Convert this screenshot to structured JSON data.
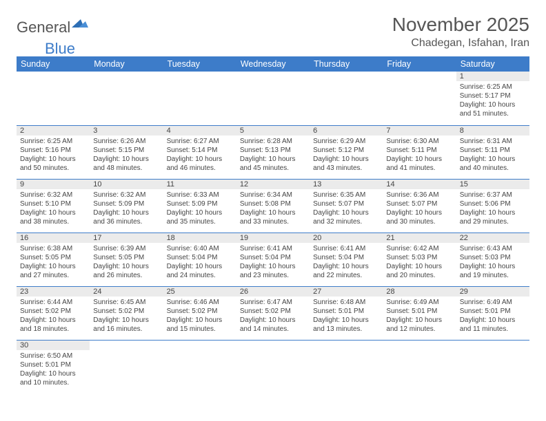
{
  "logo": {
    "text1": "General",
    "text2": "Blue"
  },
  "title": "November 2025",
  "location": "Chadegan, Isfahan, Iran",
  "colors": {
    "header_bg": "#3d7cc9",
    "header_fg": "#ffffff",
    "daynum_bg": "#ebebeb",
    "row_border": "#3d7cc9",
    "page_bg": "#ffffff",
    "text": "#444444",
    "title_text": "#555555"
  },
  "weekdays": [
    "Sunday",
    "Monday",
    "Tuesday",
    "Wednesday",
    "Thursday",
    "Friday",
    "Saturday"
  ],
  "first_day_col": 6,
  "days": [
    {
      "n": 1,
      "sunrise": "6:25 AM",
      "sunset": "5:17 PM",
      "dl_h": 10,
      "dl_m": 51
    },
    {
      "n": 2,
      "sunrise": "6:25 AM",
      "sunset": "5:16 PM",
      "dl_h": 10,
      "dl_m": 50
    },
    {
      "n": 3,
      "sunrise": "6:26 AM",
      "sunset": "5:15 PM",
      "dl_h": 10,
      "dl_m": 48
    },
    {
      "n": 4,
      "sunrise": "6:27 AM",
      "sunset": "5:14 PM",
      "dl_h": 10,
      "dl_m": 46
    },
    {
      "n": 5,
      "sunrise": "6:28 AM",
      "sunset": "5:13 PM",
      "dl_h": 10,
      "dl_m": 45
    },
    {
      "n": 6,
      "sunrise": "6:29 AM",
      "sunset": "5:12 PM",
      "dl_h": 10,
      "dl_m": 43
    },
    {
      "n": 7,
      "sunrise": "6:30 AM",
      "sunset": "5:11 PM",
      "dl_h": 10,
      "dl_m": 41
    },
    {
      "n": 8,
      "sunrise": "6:31 AM",
      "sunset": "5:11 PM",
      "dl_h": 10,
      "dl_m": 40
    },
    {
      "n": 9,
      "sunrise": "6:32 AM",
      "sunset": "5:10 PM",
      "dl_h": 10,
      "dl_m": 38
    },
    {
      "n": 10,
      "sunrise": "6:32 AM",
      "sunset": "5:09 PM",
      "dl_h": 10,
      "dl_m": 36
    },
    {
      "n": 11,
      "sunrise": "6:33 AM",
      "sunset": "5:09 PM",
      "dl_h": 10,
      "dl_m": 35
    },
    {
      "n": 12,
      "sunrise": "6:34 AM",
      "sunset": "5:08 PM",
      "dl_h": 10,
      "dl_m": 33
    },
    {
      "n": 13,
      "sunrise": "6:35 AM",
      "sunset": "5:07 PM",
      "dl_h": 10,
      "dl_m": 32
    },
    {
      "n": 14,
      "sunrise": "6:36 AM",
      "sunset": "5:07 PM",
      "dl_h": 10,
      "dl_m": 30
    },
    {
      "n": 15,
      "sunrise": "6:37 AM",
      "sunset": "5:06 PM",
      "dl_h": 10,
      "dl_m": 29
    },
    {
      "n": 16,
      "sunrise": "6:38 AM",
      "sunset": "5:05 PM",
      "dl_h": 10,
      "dl_m": 27
    },
    {
      "n": 17,
      "sunrise": "6:39 AM",
      "sunset": "5:05 PM",
      "dl_h": 10,
      "dl_m": 26
    },
    {
      "n": 18,
      "sunrise": "6:40 AM",
      "sunset": "5:04 PM",
      "dl_h": 10,
      "dl_m": 24
    },
    {
      "n": 19,
      "sunrise": "6:41 AM",
      "sunset": "5:04 PM",
      "dl_h": 10,
      "dl_m": 23
    },
    {
      "n": 20,
      "sunrise": "6:41 AM",
      "sunset": "5:04 PM",
      "dl_h": 10,
      "dl_m": 22
    },
    {
      "n": 21,
      "sunrise": "6:42 AM",
      "sunset": "5:03 PM",
      "dl_h": 10,
      "dl_m": 20
    },
    {
      "n": 22,
      "sunrise": "6:43 AM",
      "sunset": "5:03 PM",
      "dl_h": 10,
      "dl_m": 19
    },
    {
      "n": 23,
      "sunrise": "6:44 AM",
      "sunset": "5:02 PM",
      "dl_h": 10,
      "dl_m": 18
    },
    {
      "n": 24,
      "sunrise": "6:45 AM",
      "sunset": "5:02 PM",
      "dl_h": 10,
      "dl_m": 16
    },
    {
      "n": 25,
      "sunrise": "6:46 AM",
      "sunset": "5:02 PM",
      "dl_h": 10,
      "dl_m": 15
    },
    {
      "n": 26,
      "sunrise": "6:47 AM",
      "sunset": "5:02 PM",
      "dl_h": 10,
      "dl_m": 14
    },
    {
      "n": 27,
      "sunrise": "6:48 AM",
      "sunset": "5:01 PM",
      "dl_h": 10,
      "dl_m": 13
    },
    {
      "n": 28,
      "sunrise": "6:49 AM",
      "sunset": "5:01 PM",
      "dl_h": 10,
      "dl_m": 12
    },
    {
      "n": 29,
      "sunrise": "6:49 AM",
      "sunset": "5:01 PM",
      "dl_h": 10,
      "dl_m": 11
    },
    {
      "n": 30,
      "sunrise": "6:50 AM",
      "sunset": "5:01 PM",
      "dl_h": 10,
      "dl_m": 10
    }
  ],
  "labels": {
    "sunrise": "Sunrise:",
    "sunset": "Sunset:",
    "daylight_prefix": "Daylight:",
    "hours_word": "hours",
    "and_word": "and",
    "minutes_word": "minutes."
  }
}
